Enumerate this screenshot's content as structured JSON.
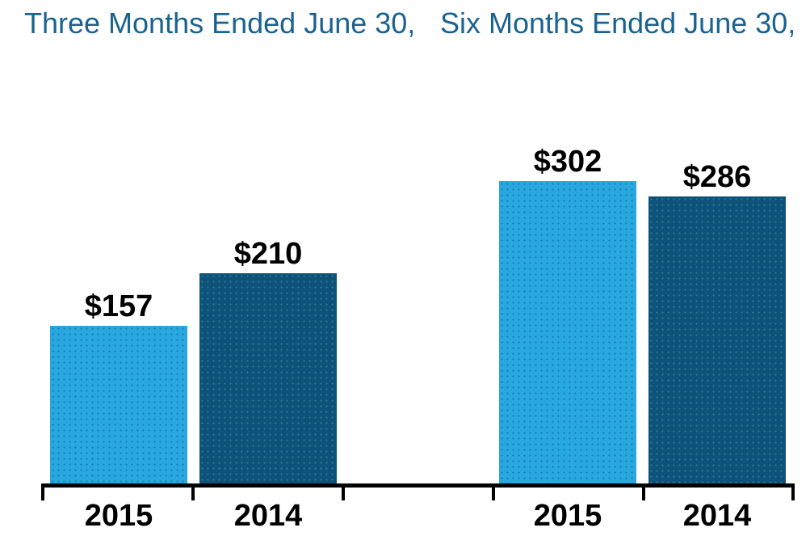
{
  "chart_data": {
    "type": "bar",
    "groups": [
      {
        "title": "Three Months Ended June 30,",
        "categories": [
          "2015",
          "2014"
        ],
        "values": [
          157,
          210
        ],
        "data_labels": [
          "$157",
          "$210"
        ]
      },
      {
        "title": "Six Months Ended June 30,",
        "categories": [
          "2015",
          "2014"
        ],
        "values": [
          302,
          286
        ],
        "data_labels": [
          "$302",
          "$286"
        ]
      }
    ],
    "colors": {
      "bar_2015": "#29a8e0",
      "bar_2014": "#0d527b",
      "title_text": "#1a6390",
      "label_text": "#000000",
      "axis": "#000000"
    },
    "layout_hints": {
      "baseline_value": 0,
      "y_axis_visible": false,
      "grid": false,
      "legend": "none",
      "data_labels_position": "above-bar"
    }
  }
}
